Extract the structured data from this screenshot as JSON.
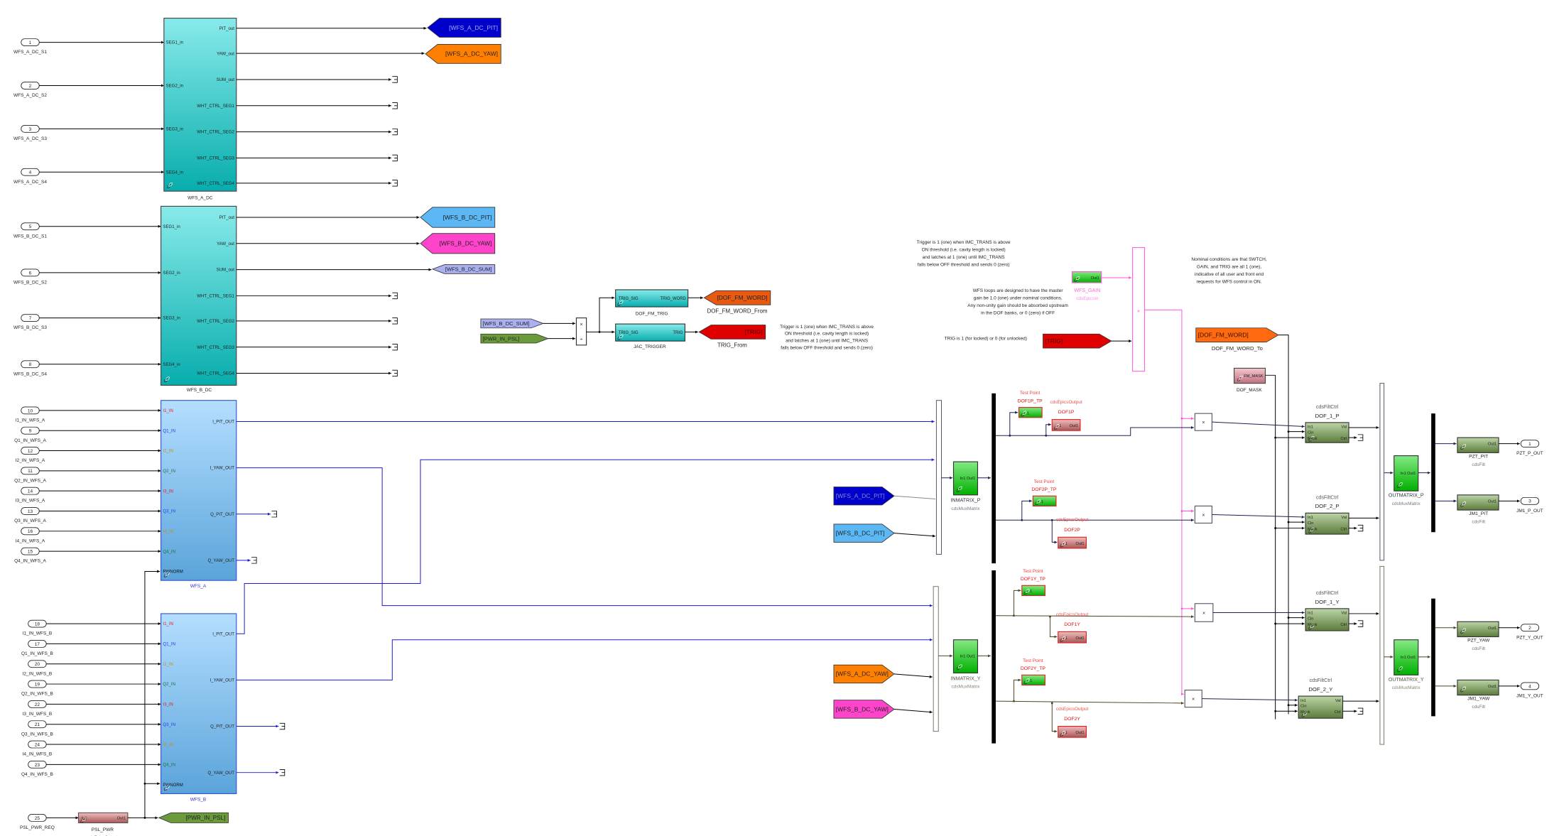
{
  "colors": {
    "wire": "#000000",
    "wire_blue": "#1a1ad0",
    "wire_navy": "#1c2050",
    "wire_olive": "#4a4520",
    "wire_pink": "#ff55dd",
    "wfs_a_dc_pit": "#0000cc",
    "wfs_a_dc_yaw": "#ff8000",
    "wfs_b_dc_pit": "#5bb8f5",
    "wfs_b_dc_yaw": "#ff44cc",
    "wfs_b_dc_sum": "#aab0f0",
    "pwr_in_psl": "#6a9a3a",
    "trig": "#e00000",
    "dof_fm_word": "#ff6a10"
  },
  "wfs_a_dc": {
    "name": "WFS_A_DC",
    "in": [
      "SEG1_in",
      "SEG2_in",
      "SEG3_in",
      "SEG4_in"
    ],
    "out": [
      "PIT_out",
      "YAW_out",
      "SUM_out",
      "WHT_CTRL_SEG1",
      "WHT_CTRL_SEG2",
      "WHT_CTRL_SEG3",
      "WHT_CTRL_SEG4"
    ],
    "inports": [
      {
        "n": "1",
        "label": "WFS_A_DC_S1"
      },
      {
        "n": "2",
        "label": "WFS_A_DC_S2"
      },
      {
        "n": "3",
        "label": "WFS_A_DC_S3"
      },
      {
        "n": "4",
        "label": "WFS_A_DC_S4"
      }
    ]
  },
  "wfs_b_dc": {
    "name": "WFS_B_DC",
    "in": [
      "SEG1_in",
      "SEG2_in",
      "SEG3_in",
      "SEG4_in"
    ],
    "out": [
      "PIT_out",
      "YAW_out",
      "SUM_out",
      "WHT_CTRL_SEG1",
      "WHT_CTRL_SEG2",
      "WHT_CTRL_SEG3",
      "WHT_CTRL_SEG4"
    ],
    "inports": [
      {
        "n": "5",
        "label": "WFS_B_DC_S1"
      },
      {
        "n": "6",
        "label": "WFS_B_DC_S2"
      },
      {
        "n": "7",
        "label": "WFS_B_DC_S3"
      },
      {
        "n": "8",
        "label": "WFS_B_DC_S4"
      }
    ]
  },
  "wfs_a": {
    "name": "WFS_A",
    "in": [
      "I1_IN",
      "Q1_IN",
      "I2_IN",
      "Q2_IN",
      "I3_IN",
      "Q3_IN",
      "I4_IN",
      "Q4_IN",
      "PWNORM"
    ],
    "out": [
      "I_PIT_OUT",
      "I_YAW_OUT",
      "Q_PIT_OUT",
      "Q_YAW_OUT"
    ],
    "inports": [
      {
        "n": "10",
        "label": "I1_IN_WFS_A"
      },
      {
        "n": "9",
        "label": "Q1_IN_WFS_A"
      },
      {
        "n": "12",
        "label": "I2_IN_WFS_A"
      },
      {
        "n": "11",
        "label": "Q2_IN_WFS_A"
      },
      {
        "n": "14",
        "label": "I3_IN_WFS_A"
      },
      {
        "n": "13",
        "label": "Q3_IN_WFS_A"
      },
      {
        "n": "16",
        "label": "I4_IN_WFS_A"
      },
      {
        "n": "15",
        "label": "Q4_IN_WFS_A"
      }
    ]
  },
  "wfs_b": {
    "name": "WFS_B",
    "in": [
      "I1_IN",
      "Q1_IN",
      "I2_IN",
      "Q2_IN",
      "I3_IN",
      "Q3_IN",
      "I4_IN",
      "Q4_IN",
      "PWNORM"
    ],
    "out": [
      "I_PIT_OUT",
      "I_YAW_OUT",
      "Q_PIT_OUT",
      "Q_YAW_OUT"
    ],
    "inports": [
      {
        "n": "18",
        "label": "I1_IN_WFS_B"
      },
      {
        "n": "17",
        "label": "Q1_IN_WFS_B"
      },
      {
        "n": "20",
        "label": "I2_IN_WFS_B"
      },
      {
        "n": "19",
        "label": "Q2_IN_WFS_B"
      },
      {
        "n": "22",
        "label": "I3_IN_WFS_B"
      },
      {
        "n": "21",
        "label": "Q3_IN_WFS_B"
      },
      {
        "n": "24",
        "label": "I4_IN_WFS_B"
      },
      {
        "n": "23",
        "label": "Q4_IN_WFS_B"
      }
    ]
  },
  "psl": {
    "inport": {
      "n": "25",
      "label": "PSL_PWR_REQ"
    },
    "block": {
      "name": "PSL_PWR",
      "lib": "cdsEpicsOutput",
      "in": "In1",
      "out": "Out1"
    },
    "goto": "[PWR_IN_PSL]"
  },
  "gotos": {
    "a_dc_pit": "[WFS_A_DC_PIT]",
    "a_dc_yaw": "[WFS_A_DC_YAW]",
    "b_dc_pit": "[WFS_B_DC_PIT]",
    "b_dc_yaw": "[WFS_B_DC_YAW]",
    "b_dc_sum": "[WFS_B_DC_SUM]"
  },
  "trigger": {
    "from_sum": "[WFS_B_DC_SUM]",
    "from_pwr": "[PWR_IN_PSL]",
    "product_ops": [
      "×",
      "÷"
    ],
    "dof_fm_trig": {
      "name": "DOF_FM_TRIG",
      "in": "TRIG_SIG",
      "out": "TRIG_WORD"
    },
    "jac_trigger": {
      "name": "JAC_TRIGGER",
      "in": "TRIG_SIG",
      "out": "TRIG"
    },
    "goto_word": {
      "tag": "[DOF_FM_WORD]",
      "name": "DOF_FM_WORD_From"
    },
    "goto_trig": {
      "tag": "[TRIG]",
      "name": "TRIG_From"
    },
    "note": [
      "Trigger is 1 (one) when IMC_TRANS is above",
      "ON threshold (i.e. cavity length is locked)",
      "and latches at 1 (one) until  IMC_TRANS",
      "falls below OFF threshold and sends 0 (zero)"
    ]
  },
  "gain": {
    "note_trigger": [
      "Trigger is 1 (one) when IMC_TRANS is above",
      "ON threshold (i.e. cavity length is locked)",
      "and latches at 1 (one) until  IMC_TRANS",
      "falls below OFF threshold and sends 0 (zero)"
    ],
    "note_wfs_loops": [
      "WFS loops are designed to have the master",
      "gain be 1.0 (one) under nominal conditions.",
      "Any non-unity gain should be absorbed upstream",
      "in the  DOF banks, or 0 (zero) if OFF"
    ],
    "note_trig": "TRIG is 1 (for locked) or 0 (for unlocked)",
    "note_nominal": [
      "Nominal conditions are that SWTCH,",
      "GAIN, and TRIG  are all 1 (one),",
      "indicative of all user and front end",
      "requests for WFS control in ON."
    ],
    "wfs_gain": {
      "name": "WFS_GAIN",
      "lib": "cdsEpicsIn",
      "out": "Out1"
    },
    "from_trig": "[TRIG]",
    "product_op": "×"
  },
  "dof_fm_word_to": {
    "tag": "[DOF_FM_WORD]",
    "name": "DOF_FM_WORD_To"
  },
  "dof_mask": {
    "name": "DOF_MASK",
    "port": "FM_MASK"
  },
  "pitch": {
    "from_a": "[WFS_A_DC_PIT]",
    "from_b": "[WFS_B_DC_PIT]",
    "inmatrix": {
      "name": "INMATRIX_P",
      "lib": "cdsMuxMatrix",
      "in": "In1",
      "out": "Out1"
    },
    "tps": [
      {
        "kind": "Test Point",
        "name": "DOF1P_TP",
        "port": "1"
      },
      {
        "kind": "Test Point",
        "name": "DOF2P_TP",
        "port": "1"
      }
    ],
    "epics": [
      {
        "lib": "cdsEpicsOutput",
        "name": "DOF1P",
        "in": "1",
        "out": "Out1"
      },
      {
        "lib": "cdsEpicsOutput",
        "name": "DOF2P",
        "in": "1",
        "out": "Out1"
      }
    ],
    "product_op": "×",
    "filt": [
      {
        "lib": "cdsFiltCtrl",
        "name": "DOF_1_P",
        "in": [
          "In1",
          "Cin",
          "Mask"
        ],
        "out": [
          "Val",
          "Ctrl"
        ]
      },
      {
        "lib": "cdsFiltCtrl",
        "name": "DOF_2_P",
        "in": [
          "In1",
          "Cin",
          "Mask"
        ],
        "out": [
          "Val",
          "Ctrl"
        ]
      }
    ],
    "outmatrix": {
      "name": "OUTMATRIX_P",
      "lib": "cdsMuxMatrix",
      "in": "In1",
      "out": "Out1"
    },
    "outs": [
      {
        "name": "PZT_PIT",
        "lib": "cdsFilt",
        "in": "In1",
        "out": "Out1",
        "port": "1",
        "label": "PZT_P_OUT"
      },
      {
        "name": "JM1_PIT",
        "lib": "cdsFilt",
        "in": "In1",
        "out": "Out1",
        "port": "3",
        "label": "JM1_P_OUT"
      }
    ]
  },
  "yaw": {
    "from_a": "[WFS_A_DC_YAW]",
    "from_b": "[WFS_B_DC_YAW]",
    "inmatrix": {
      "name": "INMATRIX_Y",
      "lib": "cdsMuxMatrix",
      "in": "In1",
      "out": "Out1"
    },
    "tps": [
      {
        "kind": "Test Point",
        "name": "DOF1Y_TP",
        "port": "1"
      },
      {
        "kind": "Test Point",
        "name": "DOF2Y_TP",
        "port": "1"
      }
    ],
    "epics": [
      {
        "lib": "cdsEpicsOutput",
        "name": "DOF1Y",
        "in": "1",
        "out": "Out1"
      },
      {
        "lib": "cdsEpicsOutput",
        "name": "DOF2Y",
        "in": "1",
        "out": "Out1"
      }
    ],
    "product_op": "×",
    "filt": [
      {
        "lib": "cdsFiltCtrl",
        "name": "DOF_1_Y",
        "in": [
          "In1",
          "Cin",
          "Mask"
        ],
        "out": [
          "Val",
          "Ctrl"
        ]
      },
      {
        "lib": "cdsFiltCtrl",
        "name": "DOF_2_Y",
        "in": [
          "In1",
          "Cin",
          "Mask"
        ],
        "out": [
          "Val",
          "Ctrl"
        ]
      }
    ],
    "outmatrix": {
      "name": "OUTMATRIX_Y",
      "lib": "cdsMuxMatrix",
      "in": "In1",
      "out": "Out1"
    },
    "outs": [
      {
        "name": "PZT_YAW",
        "lib": "cdsFilt",
        "in": "In1",
        "out": "Out1",
        "port": "2",
        "label": "PZT_Y_OUT"
      },
      {
        "name": "JM1_YAW",
        "lib": "cdsFilt",
        "in": "In1",
        "out": "Out1",
        "port": "4",
        "label": "JM1_Y_OUT"
      }
    ]
  }
}
